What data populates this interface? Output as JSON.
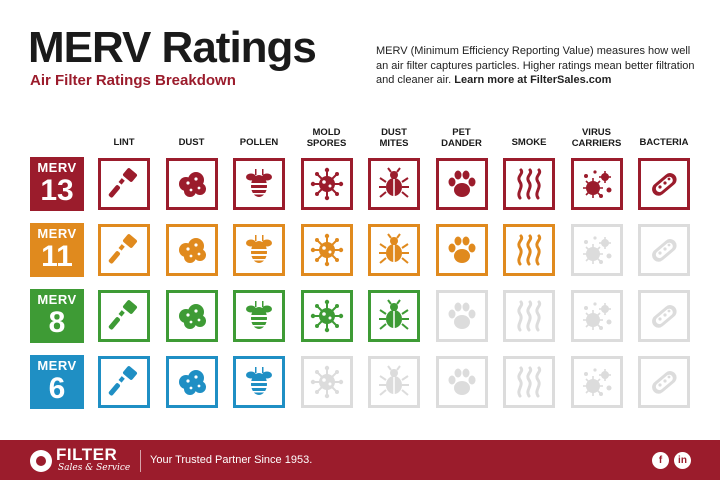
{
  "header": {
    "title": "MERV Ratings",
    "subtitle": "Air Filter Ratings Breakdown",
    "description": "MERV (Minimum Efficiency Reporting Value) measures how well an air filter captures particles. Higher ratings mean better filtration and cleaner air.",
    "link_text": "Learn more at FilterSales.com"
  },
  "columns": [
    {
      "label": "LINT",
      "icon": "lint-roller-icon"
    },
    {
      "label": "DUST",
      "icon": "dust-cloud-icon"
    },
    {
      "label": "POLLEN",
      "icon": "bee-icon"
    },
    {
      "label": "MOLD SPORES",
      "icon": "mold-spore-icon"
    },
    {
      "label": "DUST MITES",
      "icon": "dust-mite-icon"
    },
    {
      "label": "PET DANDER",
      "icon": "paw-print-icon"
    },
    {
      "label": "SMOKE",
      "icon": "smoke-icon"
    },
    {
      "label": "VIRUS CARRIERS",
      "icon": "virus-icon"
    },
    {
      "label": "BACTERIA",
      "icon": "bacteria-icon"
    }
  ],
  "rows": [
    {
      "label": "MERV",
      "rating": "13",
      "color": "#9b1c2c",
      "captures": 9
    },
    {
      "label": "MERV",
      "rating": "11",
      "color": "#e08a1e",
      "captures": 7
    },
    {
      "label": "MERV",
      "rating": "8",
      "color": "#3e9b35",
      "captures": 5
    },
    {
      "label": "MERV",
      "rating": "6",
      "color": "#1f8fc4",
      "captures": 3
    }
  ],
  "inactive_color": "#dcdcdc",
  "footer": {
    "logo": "FILTER",
    "logo_sub": "Sales & Service",
    "tagline": "Your Trusted Partner Since 1953.",
    "facebook_icon": "f",
    "linkedin_icon": "in",
    "brand_color": "#9b1c2c"
  }
}
